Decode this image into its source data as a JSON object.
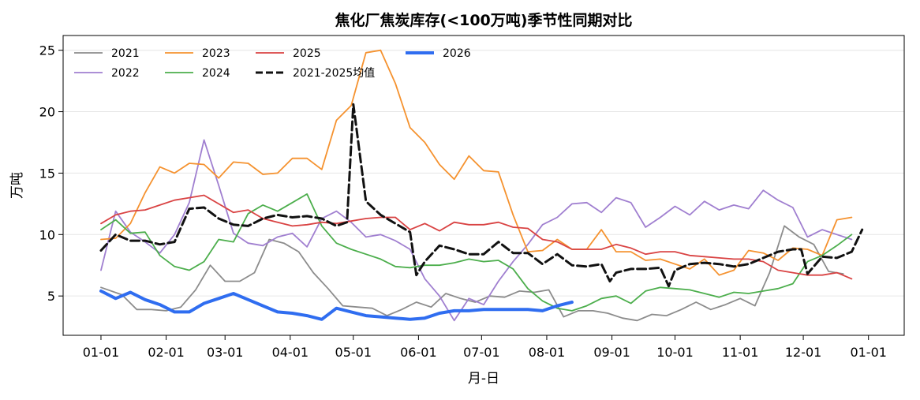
{
  "chart_data": {
    "type": "line",
    "title": "焦化厂焦炭库存(<100万吨)季节性同期对比",
    "xlabel": "月-日",
    "ylabel": "万吨",
    "x_tick_labels": [
      "01-01",
      "02-01",
      "03-01",
      "04-01",
      "05-01",
      "06-01",
      "07-01",
      "08-01",
      "09-01",
      "10-01",
      "11-01",
      "12-01",
      "01-01"
    ],
    "x_tick_days": [
      0,
      31,
      59,
      90,
      120,
      151,
      181,
      212,
      243,
      273,
      304,
      334,
      365
    ],
    "x_unit": "day of year (0 = 01-01)",
    "ylim": [
      1.8,
      26.2
    ],
    "yticks": [
      5,
      10,
      15,
      20,
      25
    ],
    "grid": "horizontal",
    "legend_position": "top-left",
    "series": [
      {
        "name": "2021",
        "color": "#8c8c8c",
        "width": 1.8,
        "dash": "",
        "x": [
          0,
          10,
          17,
          24,
          31,
          38,
          45,
          52,
          59,
          66,
          73,
          80,
          87,
          94,
          101,
          108,
          115,
          122,
          129,
          136,
          143,
          150,
          157,
          164,
          171,
          178,
          185,
          192,
          199,
          206,
          213,
          220,
          227,
          234,
          241,
          248,
          255,
          262,
          269,
          276,
          283,
          290,
          297,
          304,
          311,
          318,
          325,
          332,
          339,
          346,
          353
        ],
        "y": [
          5.7,
          5.1,
          3.9,
          3.9,
          3.8,
          4.1,
          5.5,
          7.5,
          6.2,
          6.2,
          6.9,
          9.6,
          9.3,
          8.6,
          6.9,
          5.6,
          4.2,
          4.1,
          4.0,
          3.4,
          3.9,
          4.5,
          4.1,
          5.2,
          4.8,
          4.5,
          5.0,
          4.9,
          5.4,
          5.3,
          5.5,
          3.3,
          3.8,
          3.8,
          3.6,
          3.2,
          3.0,
          3.5,
          3.4,
          3.9,
          4.5,
          3.9,
          4.3,
          4.8,
          4.2,
          6.9,
          10.7,
          9.8,
          9.2,
          7.0,
          6.8
        ]
      },
      {
        "name": "2022",
        "color": "#a07fd0",
        "width": 1.8,
        "dash": "",
        "x": [
          0,
          7,
          14,
          21,
          28,
          35,
          42,
          49,
          56,
          63,
          70,
          77,
          84,
          91,
          98,
          105,
          112,
          119,
          126,
          133,
          140,
          147,
          154,
          161,
          168,
          175,
          182,
          189,
          196,
          203,
          210,
          217,
          224,
          231,
          238,
          245,
          252,
          259,
          266,
          273,
          280,
          287,
          294,
          301,
          308,
          315,
          322,
          329,
          336,
          343,
          350,
          357
        ],
        "y": [
          7.1,
          11.9,
          10.2,
          9.4,
          8.5,
          10.0,
          12.6,
          17.7,
          14.0,
          10.1,
          9.3,
          9.1,
          9.8,
          10.1,
          9.0,
          11.3,
          11.9,
          11.0,
          9.8,
          10.0,
          9.5,
          8.8,
          6.4,
          5.0,
          3.0,
          4.8,
          4.3,
          6.2,
          7.8,
          9.2,
          10.8,
          11.4,
          12.5,
          12.6,
          11.8,
          13.0,
          12.6,
          10.6,
          11.4,
          12.3,
          11.6,
          12.7,
          12.0,
          12.4,
          12.1,
          13.6,
          12.8,
          12.2,
          9.8,
          10.4,
          10.0,
          9.6
        ]
      },
      {
        "name": "2023",
        "color": "#f5922f",
        "width": 1.8,
        "dash": "",
        "x": [
          0,
          7,
          14,
          21,
          28,
          35,
          42,
          49,
          56,
          63,
          70,
          77,
          84,
          91,
          98,
          105,
          112,
          119,
          126,
          133,
          140,
          147,
          154,
          161,
          168,
          175,
          182,
          189,
          196,
          203,
          210,
          217,
          224,
          231,
          238,
          245,
          252,
          259,
          266,
          273,
          280,
          287,
          294,
          301,
          308,
          315,
          322,
          329,
          336,
          343,
          350,
          357
        ],
        "y": [
          9.6,
          9.7,
          10.9,
          13.4,
          15.5,
          15.0,
          15.8,
          15.7,
          14.6,
          15.9,
          15.8,
          14.9,
          15.0,
          16.2,
          16.2,
          15.3,
          19.3,
          20.5,
          24.8,
          25.0,
          22.3,
          18.7,
          17.5,
          15.7,
          14.5,
          16.4,
          15.2,
          15.1,
          11.6,
          8.6,
          8.7,
          9.6,
          8.8,
          8.8,
          10.4,
          8.6,
          8.6,
          7.9,
          8.0,
          7.6,
          7.2,
          8.0,
          6.7,
          7.1,
          8.7,
          8.5,
          7.9,
          8.9,
          8.8,
          8.3,
          11.2,
          11.4
        ]
      },
      {
        "name": "2024",
        "color": "#4cae4c",
        "width": 1.8,
        "dash": "",
        "x": [
          0,
          7,
          14,
          21,
          28,
          35,
          42,
          49,
          56,
          63,
          70,
          77,
          84,
          91,
          98,
          105,
          112,
          119,
          126,
          133,
          140,
          147,
          154,
          161,
          168,
          175,
          182,
          189,
          196,
          203,
          210,
          217,
          224,
          231,
          238,
          245,
          252,
          259,
          266,
          273,
          280,
          287,
          294,
          301,
          308,
          315,
          322,
          329,
          336,
          343,
          350,
          357
        ],
        "y": [
          10.4,
          11.2,
          10.1,
          10.2,
          8.3,
          7.4,
          7.1,
          7.8,
          9.6,
          9.4,
          11.7,
          12.4,
          11.9,
          12.6,
          13.3,
          10.7,
          9.3,
          8.8,
          8.4,
          8.0,
          7.4,
          7.3,
          7.5,
          7.5,
          7.7,
          8.0,
          7.8,
          7.9,
          7.2,
          5.6,
          4.6,
          4.0,
          3.8,
          4.2,
          4.8,
          5.0,
          4.4,
          5.4,
          5.7,
          5.6,
          5.5,
          5.2,
          4.9,
          5.3,
          5.2,
          5.4,
          5.6,
          6.0,
          7.8,
          8.3,
          9.1,
          10.0
        ]
      },
      {
        "name": "2025",
        "color": "#d94343",
        "width": 1.8,
        "dash": "",
        "x": [
          0,
          7,
          14,
          21,
          28,
          35,
          42,
          49,
          56,
          63,
          70,
          77,
          84,
          91,
          98,
          105,
          112,
          119,
          126,
          133,
          140,
          147,
          154,
          161,
          168,
          175,
          182,
          189,
          196,
          203,
          210,
          217,
          224,
          231,
          238,
          245,
          252,
          259,
          266,
          273,
          280,
          287,
          294,
          301,
          308,
          315,
          322,
          329,
          336,
          343,
          350,
          357
        ],
        "y": [
          10.9,
          11.6,
          11.9,
          12.0,
          12.4,
          12.8,
          13.0,
          13.2,
          12.5,
          11.8,
          12.0,
          11.3,
          11.0,
          10.7,
          10.8,
          11.0,
          10.9,
          11.1,
          11.3,
          11.4,
          11.4,
          10.4,
          10.9,
          10.3,
          11.0,
          10.8,
          10.8,
          11.0,
          10.6,
          10.5,
          9.6,
          9.4,
          8.8,
          8.8,
          8.8,
          9.2,
          8.9,
          8.4,
          8.6,
          8.6,
          8.3,
          8.2,
          8.1,
          8.0,
          8.0,
          7.8,
          7.1,
          6.9,
          6.7,
          6.7,
          6.9,
          6.4
        ]
      },
      {
        "name": "2021-2025均值",
        "color": "#111111",
        "width": 3.0,
        "dash": "11 5",
        "x": [
          0,
          7,
          14,
          21,
          28,
          35,
          42,
          49,
          56,
          63,
          70,
          77,
          84,
          91,
          98,
          105,
          112,
          117,
          120,
          126,
          133,
          140,
          147,
          150,
          154,
          161,
          168,
          175,
          182,
          189,
          196,
          203,
          210,
          217,
          224,
          231,
          238,
          242,
          245,
          252,
          259,
          266,
          270,
          273,
          280,
          287,
          294,
          301,
          308,
          315,
          322,
          329,
          333,
          336,
          343,
          350,
          357,
          362
        ],
        "y": [
          8.7,
          10.0,
          9.5,
          9.5,
          9.2,
          9.4,
          12.1,
          12.2,
          11.3,
          10.8,
          10.7,
          11.3,
          11.6,
          11.4,
          11.5,
          11.3,
          10.7,
          11.0,
          20.6,
          12.7,
          11.6,
          10.9,
          10.2,
          6.7,
          7.8,
          9.1,
          8.8,
          8.4,
          8.4,
          9.4,
          8.5,
          8.5,
          7.6,
          8.4,
          7.5,
          7.4,
          7.6,
          6.2,
          6.9,
          7.2,
          7.2,
          7.3,
          5.8,
          7.1,
          7.6,
          7.7,
          7.6,
          7.4,
          7.6,
          8.1,
          8.6,
          8.8,
          8.8,
          6.8,
          8.2,
          8.1,
          8.6,
          10.4
        ]
      },
      {
        "name": "2026",
        "color": "#2f6df0",
        "width": 4.0,
        "dash": "",
        "x": [
          0,
          7,
          14,
          21,
          28,
          35,
          42,
          49,
          56,
          63,
          70,
          77,
          84,
          91,
          98,
          105,
          112,
          119,
          126,
          133,
          140,
          147,
          154,
          161,
          168,
          175,
          182,
          189,
          196,
          203,
          210,
          217,
          224
        ],
        "y": [
          5.4,
          4.8,
          5.3,
          4.7,
          4.3,
          3.7,
          3.7,
          4.4,
          4.8,
          5.2,
          4.7,
          4.2,
          3.7,
          3.6,
          3.4,
          3.1,
          4.0,
          3.7,
          3.4,
          3.3,
          3.2,
          3.1,
          3.2,
          3.6,
          3.8,
          3.8,
          3.9,
          3.9,
          3.9,
          3.9,
          3.8,
          4.2,
          4.5
        ]
      }
    ]
  }
}
